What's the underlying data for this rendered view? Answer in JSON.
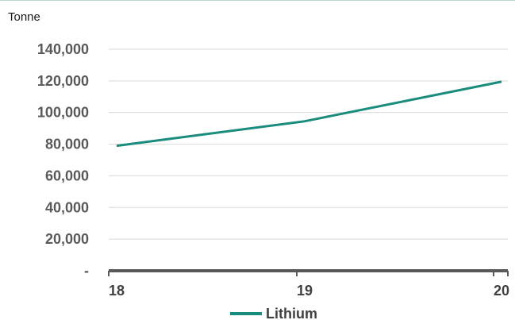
{
  "chart_data": {
    "type": "line",
    "unit_label": "Tonne",
    "categories": [
      "18",
      "19",
      "20"
    ],
    "series": [
      {
        "name": "Lithium",
        "values": [
          79000,
          94500,
          119500
        ],
        "color": "#1a8c7d"
      }
    ],
    "ylim": [
      0,
      140000
    ],
    "yticks": [
      0,
      20000,
      40000,
      60000,
      80000,
      100000,
      120000,
      140000
    ],
    "ytick_labels": [
      "-",
      "20,000",
      "40,000",
      "60,000",
      "80,000",
      "100,000",
      "120,000",
      "140,000"
    ],
    "grid": true,
    "legend_position": "bottom"
  },
  "colors": {
    "series": "#1a8c7d",
    "gridline": "#d9d9d9",
    "axis": "#595959",
    "tick_text": "#595959"
  }
}
